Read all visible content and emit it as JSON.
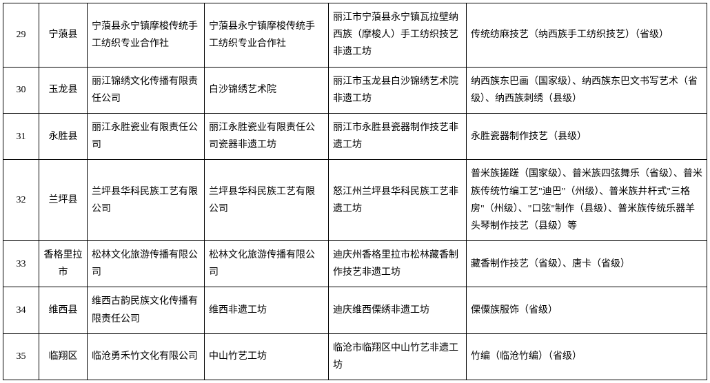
{
  "table": {
    "rows": [
      {
        "num": "29",
        "region": "宁蒗县",
        "company": "宁蒗县永宁镇摩梭传统手工纺织专业合作社",
        "workshop": "宁蒗县永宁镇摩梭传统手工纺织专业合作社",
        "project": "丽江市宁蒗县永宁镇瓦拉壁纳西族（摩梭人）手工纺织技艺非遗工坊",
        "heritage": "传统纺麻技艺（纳西族手工纺织技艺）（省级）"
      },
      {
        "num": "30",
        "region": "玉龙县",
        "company": "丽江锦绣文化传播有限责任公司",
        "workshop": "白沙锦绣艺术院",
        "project": "丽江市玉龙县白沙锦绣艺术院非遗工坊",
        "heritage": "纳西族东巴画（国家级）、纳西族东巴文书写艺术（省级）、纳西族刺绣（县级）"
      },
      {
        "num": "31",
        "region": "永胜县",
        "company": "丽江永胜瓷业有限责任公司",
        "workshop": "丽江永胜瓷业有限责任公司瓷器非遗工坊",
        "project": "丽江市永胜县瓷器制作技艺非遗工坊",
        "heritage": "永胜瓷器制作技艺（县级）"
      },
      {
        "num": "32",
        "region": "兰坪县",
        "company": "兰坪县华科民族工艺有限公司",
        "workshop": "兰坪县华科民族工艺有限公司",
        "project": "怒江州兰坪县华科民族工艺非遗工坊",
        "heritage": "普米族搓蹉（国家级）、普米族四弦舞乐（省级）、普米族传统竹编工艺\"迪巴\"（州级）、普米族井杆式\"三格房\"（州级）、\"口弦\"制作（县级）、普米族传统乐器羊头琴制作技艺（县级）等"
      },
      {
        "num": "33",
        "region": "香格里拉市",
        "company": "松林文化旅游传播有限公司",
        "workshop": "松林文化旅游传播有限公司",
        "project": "迪庆州香格里拉市松林藏香制作技艺非遗工坊",
        "heritage": "藏香制作技艺（省级）、唐卡（省级）"
      },
      {
        "num": "34",
        "region": "维西县",
        "company": "维西古韵民族文化传播有限责任公司",
        "workshop": "维西非遗工坊",
        "project": "迪庆维西傈绣非遗工坊",
        "heritage": "傈僳族服饰（省级）"
      },
      {
        "num": "35",
        "region": "临翔区",
        "company": "临沧勇禾竹文化有限公司",
        "workshop": "中山竹艺工坊",
        "project": "临沧市临翔区中山竹艺非遗工坊",
        "heritage": "竹编（临沧竹编）（省级）"
      }
    ],
    "columns": {
      "num_width": 52,
      "region_width": 70,
      "company_width": 170,
      "workshop_width": 180,
      "project_width": 200
    },
    "styling": {
      "border_color": "#000000",
      "background_color": "#ffffff",
      "text_color": "#000000",
      "font_size": 14,
      "line_height": 1.8,
      "font_family": "SimSun"
    }
  }
}
